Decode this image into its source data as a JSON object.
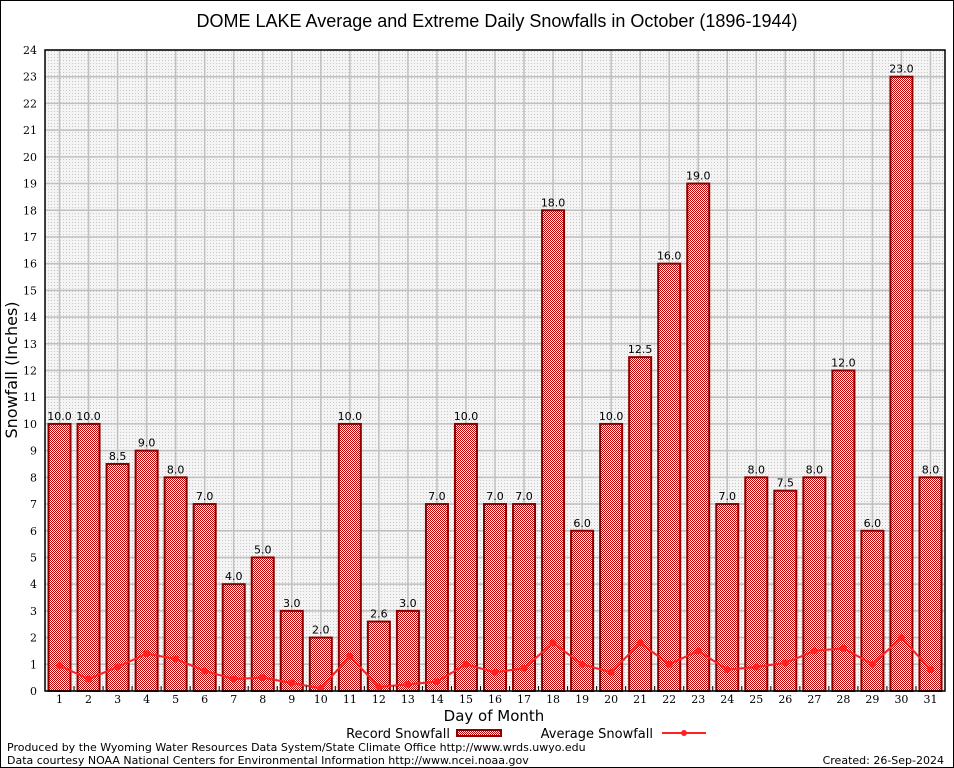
{
  "chart_data": {
    "type": "bar",
    "title": "DOME LAKE Average and Extreme Daily Snowfalls in October (1896-1944)",
    "xlabel": "Day of Month",
    "ylabel": "Snowfall (Inches)",
    "ylim": [
      0,
      24
    ],
    "yticks": [
      0,
      1,
      2,
      3,
      4,
      5,
      6,
      7,
      8,
      9,
      10,
      11,
      12,
      13,
      14,
      15,
      16,
      17,
      18,
      19,
      20,
      21,
      22,
      23,
      24
    ],
    "grid": true,
    "legend_placement": "bottom",
    "categories": [
      "1",
      "2",
      "3",
      "4",
      "5",
      "6",
      "7",
      "8",
      "9",
      "10",
      "11",
      "12",
      "13",
      "14",
      "15",
      "16",
      "17",
      "18",
      "19",
      "20",
      "21",
      "22",
      "23",
      "24",
      "25",
      "26",
      "27",
      "28",
      "29",
      "30",
      "31"
    ],
    "series": [
      {
        "name": "Record Snowfall",
        "type": "bar",
        "color": "#a00000",
        "values": [
          10.0,
          10.0,
          8.5,
          9.0,
          8.0,
          7.0,
          4.0,
          5.0,
          3.0,
          2.0,
          10.0,
          2.6,
          3.0,
          7.0,
          10.0,
          7.0,
          7.0,
          18.0,
          6.0,
          10.0,
          12.5,
          16.0,
          19.0,
          7.0,
          8.0,
          7.5,
          8.0,
          12.0,
          6.0,
          23.0,
          8.0
        ],
        "labels": [
          "10.0",
          "10.0",
          "8.5",
          "9.0",
          "8.0",
          "7.0",
          "4.0",
          "5.0",
          "3.0",
          "2.0",
          "10.0",
          "2.6",
          "3.0",
          "7.0",
          "10.0",
          "7.0",
          "7.0",
          "18.0",
          "6.0",
          "10.0",
          "12.5",
          "16.0",
          "19.0",
          "7.0",
          "8.0",
          "7.5",
          "8.0",
          "12.0",
          "6.0",
          "23.0",
          "8.0"
        ]
      },
      {
        "name": "Average Snowfall",
        "type": "line",
        "color": "#ff2020",
        "values": [
          0.95,
          0.45,
          0.9,
          1.4,
          1.2,
          0.75,
          0.45,
          0.5,
          0.3,
          0.1,
          1.3,
          0.15,
          0.25,
          0.35,
          1.0,
          0.7,
          0.85,
          1.8,
          1.0,
          0.7,
          1.8,
          1.0,
          1.5,
          0.8,
          0.9,
          1.05,
          1.5,
          1.6,
          1.0,
          2.0,
          0.8
        ]
      }
    ]
  },
  "footer": {
    "produced_by": "Produced by the Wyoming Water Resources Data System/State Climate Office http://www.wrds.uwyo.edu",
    "courtesy": "Data courtesy NOAA National Centers for Environmental Information http://www.ncei.noaa.gov",
    "created": "Created: 26-Sep-2024"
  }
}
